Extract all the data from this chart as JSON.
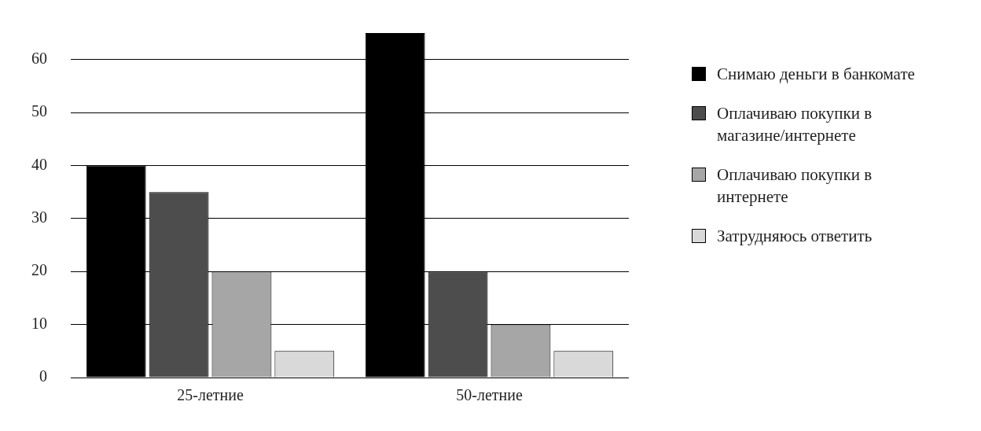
{
  "chart_data": {
    "type": "bar",
    "categories": [
      "25-летние",
      "50-летние"
    ],
    "series": [
      {
        "name": "Снимаю деньги в банкомате",
        "color": "#000000",
        "values": [
          40,
          65
        ]
      },
      {
        "name": "Оплачиваю покупки в магазине/интернете",
        "color": "#4d4d4d",
        "values": [
          35,
          20
        ]
      },
      {
        "name": "Оплачиваю покупки в интернете",
        "color": "#a6a6a6",
        "values": [
          20,
          10
        ]
      },
      {
        "name": "Затрудняюсь ответить",
        "color": "#d9d9d9",
        "values": [
          5,
          5
        ]
      }
    ],
    "ylim": [
      0,
      65
    ],
    "yticks": [
      0,
      10,
      20,
      30,
      40,
      50,
      60
    ],
    "grid": "y",
    "legend": "right"
  }
}
